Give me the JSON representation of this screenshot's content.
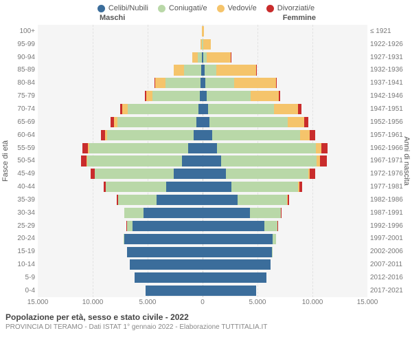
{
  "legend": [
    {
      "label": "Celibi/Nubili",
      "color": "#3b6d9b"
    },
    {
      "label": "Coniugati/e",
      "color": "#b9d8a8"
    },
    {
      "label": "Vedovi/e",
      "color": "#f5c46b"
    },
    {
      "label": "Divorziati/e",
      "color": "#c92c2c"
    }
  ],
  "gender": {
    "male": "Maschi",
    "female": "Femmine"
  },
  "axis_titles": {
    "left": "Fasce di età",
    "right": "Anni di nascita"
  },
  "colors": {
    "bg_plot": "#f5f5f5",
    "grid": "#e2e2e2",
    "center": "#cccccc",
    "text": "#555555",
    "text_light": "#888888"
  },
  "x_axis": {
    "max": 15000,
    "ticks": [
      15000,
      10000,
      5000,
      0,
      5000,
      10000,
      15000
    ],
    "tick_labels": [
      "15.000",
      "10.000",
      "5.000",
      "0",
      "5.000",
      "10.000",
      "15.000"
    ]
  },
  "rows": [
    {
      "age": "100+",
      "cohort": "≤ 1921",
      "m": [
        5,
        0,
        30,
        0
      ],
      "f": [
        10,
        0,
        140,
        0
      ]
    },
    {
      "age": "95-99",
      "cohort": "1922-1926",
      "m": [
        20,
        40,
        160,
        0
      ],
      "f": [
        30,
        50,
        700,
        0
      ]
    },
    {
      "age": "90-94",
      "cohort": "1927-1931",
      "m": [
        60,
        400,
        500,
        10
      ],
      "f": [
        80,
        300,
        2200,
        10
      ]
    },
    {
      "age": "85-89",
      "cohort": "1932-1936",
      "m": [
        120,
        1600,
        900,
        20
      ],
      "f": [
        180,
        1100,
        3600,
        30
      ]
    },
    {
      "age": "80-84",
      "cohort": "1937-1941",
      "m": [
        200,
        3200,
        900,
        50
      ],
      "f": [
        280,
        2600,
        3800,
        80
      ]
    },
    {
      "age": "75-79",
      "cohort": "1942-1946",
      "m": [
        250,
        4300,
        600,
        90
      ],
      "f": [
        350,
        4000,
        2600,
        140
      ]
    },
    {
      "age": "70-74",
      "cohort": "1947-1951",
      "m": [
        400,
        6400,
        500,
        200
      ],
      "f": [
        500,
        6000,
        2200,
        300
      ]
    },
    {
      "age": "65-69",
      "cohort": "1952-1956",
      "m": [
        550,
        7200,
        300,
        300
      ],
      "f": [
        650,
        7100,
        1500,
        400
      ]
    },
    {
      "age": "60-64",
      "cohort": "1957-1961",
      "m": [
        800,
        7900,
        180,
        400
      ],
      "f": [
        850,
        8000,
        900,
        500
      ]
    },
    {
      "age": "55-59",
      "cohort": "1962-1966",
      "m": [
        1300,
        9000,
        120,
        500
      ],
      "f": [
        1300,
        9000,
        500,
        600
      ]
    },
    {
      "age": "50-54",
      "cohort": "1967-1971",
      "m": [
        1900,
        8600,
        70,
        500
      ],
      "f": [
        1700,
        8700,
        300,
        600
      ]
    },
    {
      "age": "45-49",
      "cohort": "1972-1976",
      "m": [
        2600,
        7200,
        40,
        350
      ],
      "f": [
        2100,
        7500,
        170,
        450
      ]
    },
    {
      "age": "40-44",
      "cohort": "1977-1981",
      "m": [
        3300,
        5500,
        20,
        200
      ],
      "f": [
        2600,
        6100,
        90,
        300
      ]
    },
    {
      "age": "35-39",
      "cohort": "1982-1986",
      "m": [
        4200,
        3500,
        10,
        100
      ],
      "f": [
        3200,
        4500,
        50,
        150
      ]
    },
    {
      "age": "30-34",
      "cohort": "1987-1991",
      "m": [
        5400,
        1700,
        5,
        40
      ],
      "f": [
        4300,
        2800,
        20,
        70
      ]
    },
    {
      "age": "25-29",
      "cohort": "1992-1996",
      "m": [
        6400,
        500,
        0,
        10
      ],
      "f": [
        5600,
        1200,
        5,
        20
      ]
    },
    {
      "age": "20-24",
      "cohort": "1997-2001",
      "m": [
        7100,
        60,
        0,
        0
      ],
      "f": [
        6400,
        280,
        0,
        2
      ]
    },
    {
      "age": "15-19",
      "cohort": "2002-2006",
      "m": [
        6900,
        2,
        0,
        0
      ],
      "f": [
        6300,
        15,
        0,
        0
      ]
    },
    {
      "age": "10-14",
      "cohort": "2007-2011",
      "m": [
        6600,
        0,
        0,
        0
      ],
      "f": [
        6200,
        0,
        0,
        0
      ]
    },
    {
      "age": "5-9",
      "cohort": "2012-2016",
      "m": [
        6200,
        0,
        0,
        0
      ],
      "f": [
        5800,
        0,
        0,
        0
      ]
    },
    {
      "age": "0-4",
      "cohort": "2017-2021",
      "m": [
        5200,
        0,
        0,
        0
      ],
      "f": [
        4900,
        0,
        0,
        0
      ]
    }
  ],
  "title": "Popolazione per età, sesso e stato civile - 2022",
  "subtitle": "PROVINCIA DI TERAMO - Dati ISTAT 1° gennaio 2022 - Elaborazione TUTTITALIA.IT"
}
